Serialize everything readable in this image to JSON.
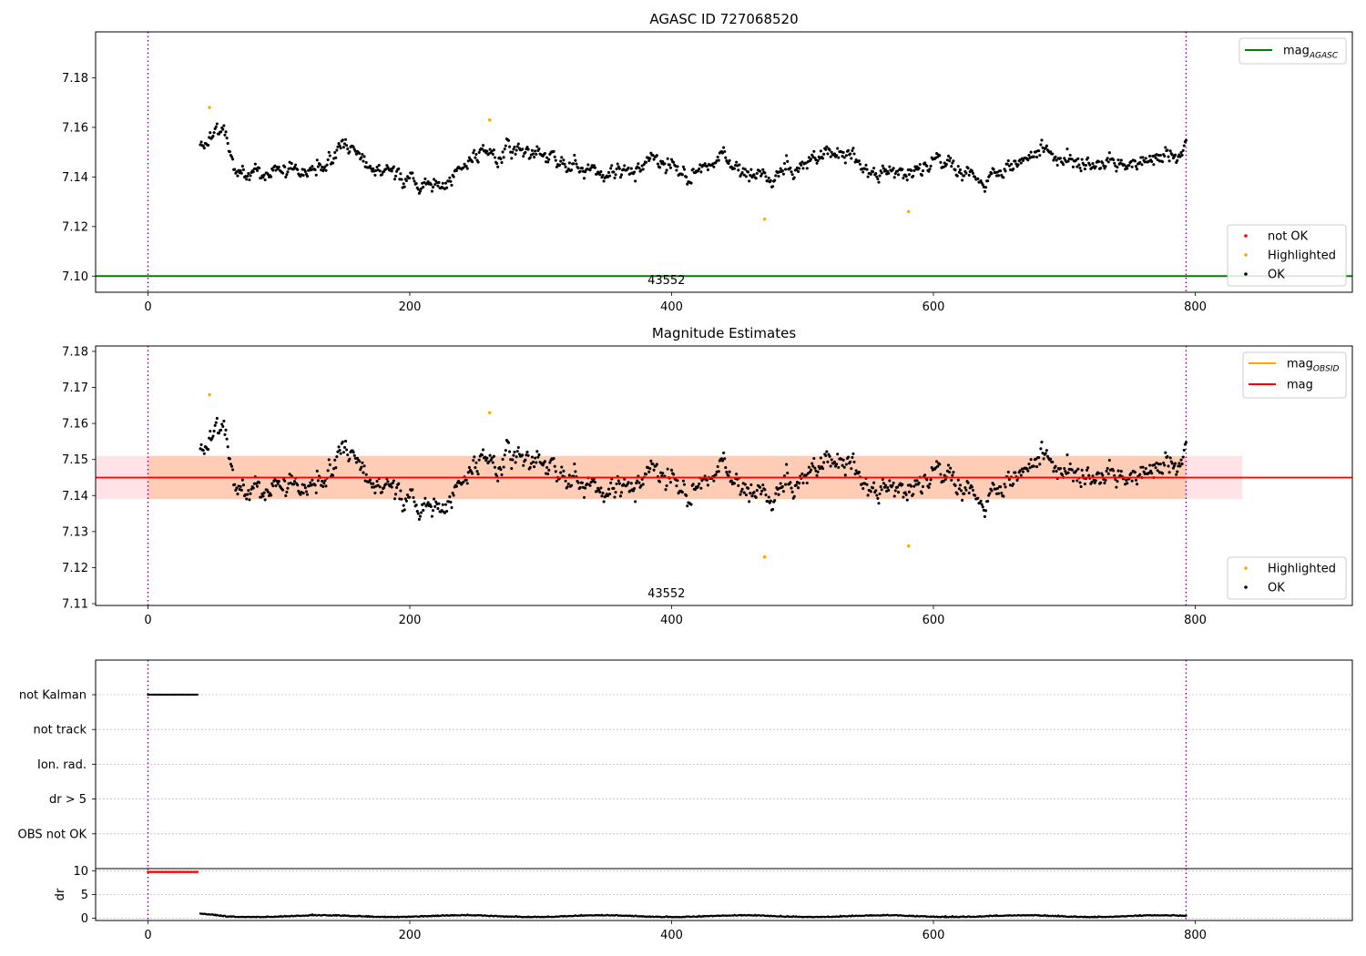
{
  "chart_data": [
    {
      "type": "scatter",
      "title": "AGASC ID 727068520",
      "xlim": [
        -40,
        920
      ],
      "ylim": [
        7.0935,
        7.1985
      ],
      "xticks": [
        0,
        200,
        400,
        600,
        800
      ],
      "yticks": [
        7.1,
        7.12,
        7.14,
        7.16,
        7.18
      ],
      "ytick_labels": [
        "7.10",
        "7.12",
        "7.14",
        "7.16",
        "7.18"
      ],
      "obsid_label": "43552",
      "obsid_label_x": 396,
      "obs_bounds": [
        0,
        793
      ],
      "mag_agasc": 7.1,
      "mag_agasc_color": "#008000",
      "highlighted_points": [
        [
          47,
          7.168
        ],
        [
          261,
          7.163
        ],
        [
          471,
          7.123
        ],
        [
          581,
          7.126
        ]
      ],
      "legend_upper": [
        {
          "label": "mag",
          "sub": "AGASC",
          "color": "#008000"
        }
      ],
      "legend_lower": [
        {
          "label": "not OK",
          "color": "#ff0000"
        },
        {
          "label": "Highlighted",
          "color": "#ffa500"
        },
        {
          "label": "OK",
          "color": "#000000"
        }
      ]
    },
    {
      "type": "scatter",
      "title": "Magnitude Estimates",
      "xlim": [
        -40,
        920
      ],
      "ylim": [
        7.1095,
        7.1815
      ],
      "xticks": [
        0,
        200,
        400,
        600,
        800
      ],
      "yticks": [
        7.11,
        7.12,
        7.13,
        7.14,
        7.15,
        7.16,
        7.17,
        7.18
      ],
      "ytick_labels": [
        "7.11",
        "7.12",
        "7.13",
        "7.14",
        "7.15",
        "7.16",
        "7.17",
        "7.18"
      ],
      "obsid_label": "43552",
      "obsid_label_x": 396,
      "obs_bounds": [
        0,
        793
      ],
      "mag": 7.145,
      "mag_band": [
        7.139,
        7.151
      ],
      "mag_band_x": [
        -40,
        836
      ],
      "mag_obsid": 7.145,
      "mag_obsid_x": [
        0,
        793
      ],
      "highlighted_points": [
        [
          47,
          7.168
        ],
        [
          261,
          7.163
        ],
        [
          471,
          7.123
        ],
        [
          581,
          7.126
        ]
      ],
      "legend_upper": [
        {
          "label": "mag",
          "sub": "OBSID",
          "color": "#ffa500"
        },
        {
          "label": "mag",
          "sub": "",
          "color": "#ff0000"
        }
      ],
      "legend_lower": [
        {
          "label": "Highlighted",
          "color": "#ffa500"
        },
        {
          "label": "OK",
          "color": "#000000"
        }
      ]
    },
    {
      "type": "scatter",
      "xlim": [
        -40,
        920
      ],
      "flag_rows": [
        "not Kalman",
        "not track",
        "Ion. rad.",
        "dr > 5",
        "OBS not OK"
      ],
      "not_kalman_x": [
        0,
        38
      ],
      "obs_bounds": [
        0,
        793
      ]
    },
    {
      "type": "scatter",
      "ylabel": "dr",
      "xlim": [
        -40,
        920
      ],
      "ylim": [
        -0.5,
        10.5
      ],
      "xticks": [
        0,
        200,
        400,
        600,
        800
      ],
      "yticks": [
        0,
        5,
        10
      ],
      "ytick_labels": [
        "0",
        "5",
        "10"
      ],
      "dr_saturated": 9.8,
      "dr_saturated_x": [
        0,
        38
      ],
      "obs_bounds": [
        0,
        793
      ]
    }
  ],
  "series_params": {
    "t_start": 40,
    "t_end": 793,
    "step": 0.75,
    "mag_mean": 7.145,
    "seed": 727068520,
    "segments": [
      [
        40,
        7.156
      ],
      [
        58,
        7.154
      ],
      [
        68,
        7.139
      ],
      [
        85,
        7.142
      ],
      [
        110,
        7.142
      ],
      [
        150,
        7.152
      ],
      [
        160,
        7.152
      ],
      [
        170,
        7.144
      ],
      [
        190,
        7.141
      ],
      [
        220,
        7.138
      ],
      [
        260,
        7.149
      ],
      [
        290,
        7.152
      ],
      [
        320,
        7.147
      ],
      [
        350,
        7.139
      ],
      [
        380,
        7.146
      ],
      [
        400,
        7.145
      ],
      [
        420,
        7.14
      ],
      [
        440,
        7.148
      ],
      [
        470,
        7.138
      ],
      [
        500,
        7.146
      ],
      [
        530,
        7.149
      ],
      [
        560,
        7.141
      ],
      [
        600,
        7.143
      ],
      [
        640,
        7.138
      ],
      [
        680,
        7.152
      ],
      [
        720,
        7.145
      ],
      [
        760,
        7.147
      ],
      [
        793,
        7.152
      ]
    ]
  }
}
